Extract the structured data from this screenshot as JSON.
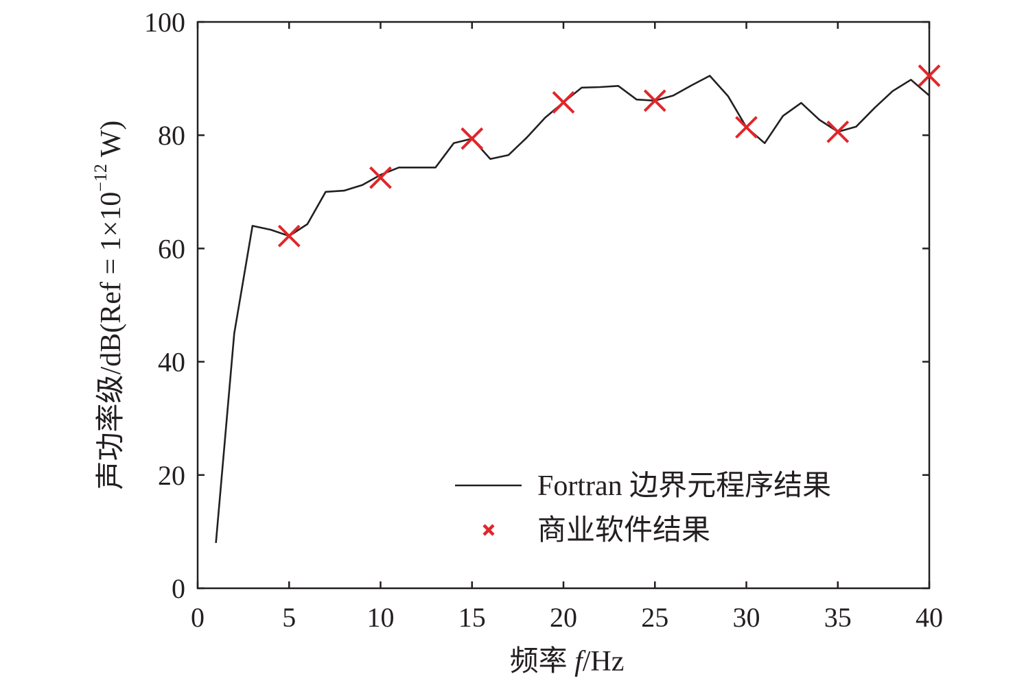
{
  "chart_data": {
    "type": "line",
    "xlabel_main": "频率 ",
    "xlabel_var": "f",
    "xlabel_unit": "/Hz",
    "ylabel_main": "声功率级/dB(Ref = 1×10",
    "ylabel_exp": "−12",
    "ylabel_end": " W)",
    "xlim": [
      0,
      40
    ],
    "ylim": [
      0,
      100
    ],
    "xticks": [
      0,
      5,
      10,
      15,
      20,
      25,
      30,
      35,
      40
    ],
    "yticks": [
      0,
      20,
      40,
      60,
      80,
      100
    ],
    "grid": false,
    "legend_position": "lower-right",
    "series": [
      {
        "name": "Fortran 边界元程序结果",
        "kind": "line",
        "color": "#231f20",
        "x": [
          1,
          2,
          3,
          4,
          5,
          6,
          7,
          8,
          9,
          10,
          11,
          12,
          13,
          14,
          15,
          16,
          17,
          18,
          19,
          20,
          21,
          22,
          23,
          24,
          25,
          26,
          27,
          28,
          29,
          30,
          31,
          32,
          33,
          34,
          35,
          36,
          37,
          38,
          39,
          40
        ],
        "y": [
          8,
          45,
          64,
          63.3,
          62.2,
          64.3,
          70,
          70.2,
          71.2,
          73,
          74.3,
          74.3,
          74.3,
          78.6,
          79.4,
          75.8,
          76.5,
          79.6,
          83.1,
          85.8,
          88.4,
          88.5,
          88.7,
          86.3,
          86.1,
          87,
          88.8,
          90.5,
          86.9,
          81.4,
          78.6,
          83.4,
          85.7,
          82.7,
          80.6,
          81.5,
          84.8,
          87.8,
          89.8,
          87
        ]
      },
      {
        "name": "商业软件结果",
        "kind": "scatter",
        "marker": "x",
        "color": "#e0262b",
        "x": [
          5,
          10,
          15,
          20,
          25,
          30,
          35,
          40
        ],
        "y": [
          62.2,
          72.5,
          79.4,
          85.8,
          86.1,
          81.4,
          80.6,
          90.5
        ]
      }
    ]
  }
}
